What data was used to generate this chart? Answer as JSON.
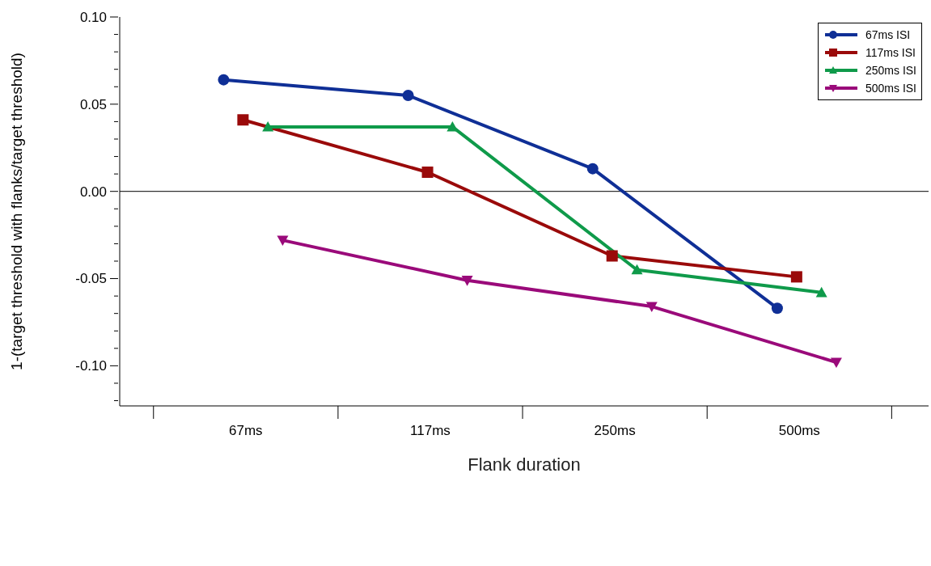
{
  "chart_data": {
    "type": "line",
    "xlabel": "Flank duration",
    "ylabel": "1-(target threshold with flanks/target threshold)",
    "categories": [
      "67ms",
      "117ms",
      "250ms",
      "500ms"
    ],
    "series": [
      {
        "name": "67ms ISI",
        "color": "#0f2f96",
        "marker": "circle",
        "values": [
          0.064,
          0.055,
          0.013,
          -0.067
        ]
      },
      {
        "name": "117ms ISI",
        "color": "#9a0a0a",
        "marker": "square",
        "values": [
          0.041,
          0.011,
          -0.037,
          -0.049
        ]
      },
      {
        "name": "250ms ISI",
        "color": "#0f9a4a",
        "marker": "triangle",
        "values": [
          0.037,
          0.037,
          -0.045,
          -0.058
        ]
      },
      {
        "name": "500ms ISI",
        "color": "#9a0a7a",
        "marker": "triangle-down",
        "values": [
          -0.028,
          -0.051,
          -0.066,
          -0.098
        ]
      }
    ],
    "ylim": [
      -0.123,
      0.1
    ],
    "yticks": [
      {
        "value": -0.12,
        "label": null
      },
      {
        "value": -0.11,
        "label": null
      },
      {
        "value": -0.1,
        "label": "-0.10"
      },
      {
        "value": -0.09,
        "label": null
      },
      {
        "value": -0.08,
        "label": null
      },
      {
        "value": -0.07,
        "label": null
      },
      {
        "value": -0.06,
        "label": null
      },
      {
        "value": -0.05,
        "label": "-0.05"
      },
      {
        "value": -0.04,
        "label": null
      },
      {
        "value": -0.03,
        "label": null
      },
      {
        "value": -0.02,
        "label": null
      },
      {
        "value": -0.01,
        "label": null
      },
      {
        "value": 0,
        "label": "0.00"
      },
      {
        "value": 0.01,
        "label": null
      },
      {
        "value": 0.02,
        "label": null
      },
      {
        "value": 0.03,
        "label": null
      },
      {
        "value": 0.04,
        "label": null
      },
      {
        "value": 0.05,
        "label": "0.05"
      },
      {
        "value": 0.06,
        "label": null
      },
      {
        "value": 0.07,
        "label": null
      },
      {
        "value": 0.08,
        "label": null
      },
      {
        "value": 0.09,
        "label": null
      },
      {
        "value": 0.1,
        "label": "0.10"
      }
    ],
    "ref_lines": [
      {
        "axis": "y",
        "value": 0,
        "color": "#000000"
      }
    ],
    "grid": false,
    "legend": "top right",
    "line_style": "solid"
  }
}
